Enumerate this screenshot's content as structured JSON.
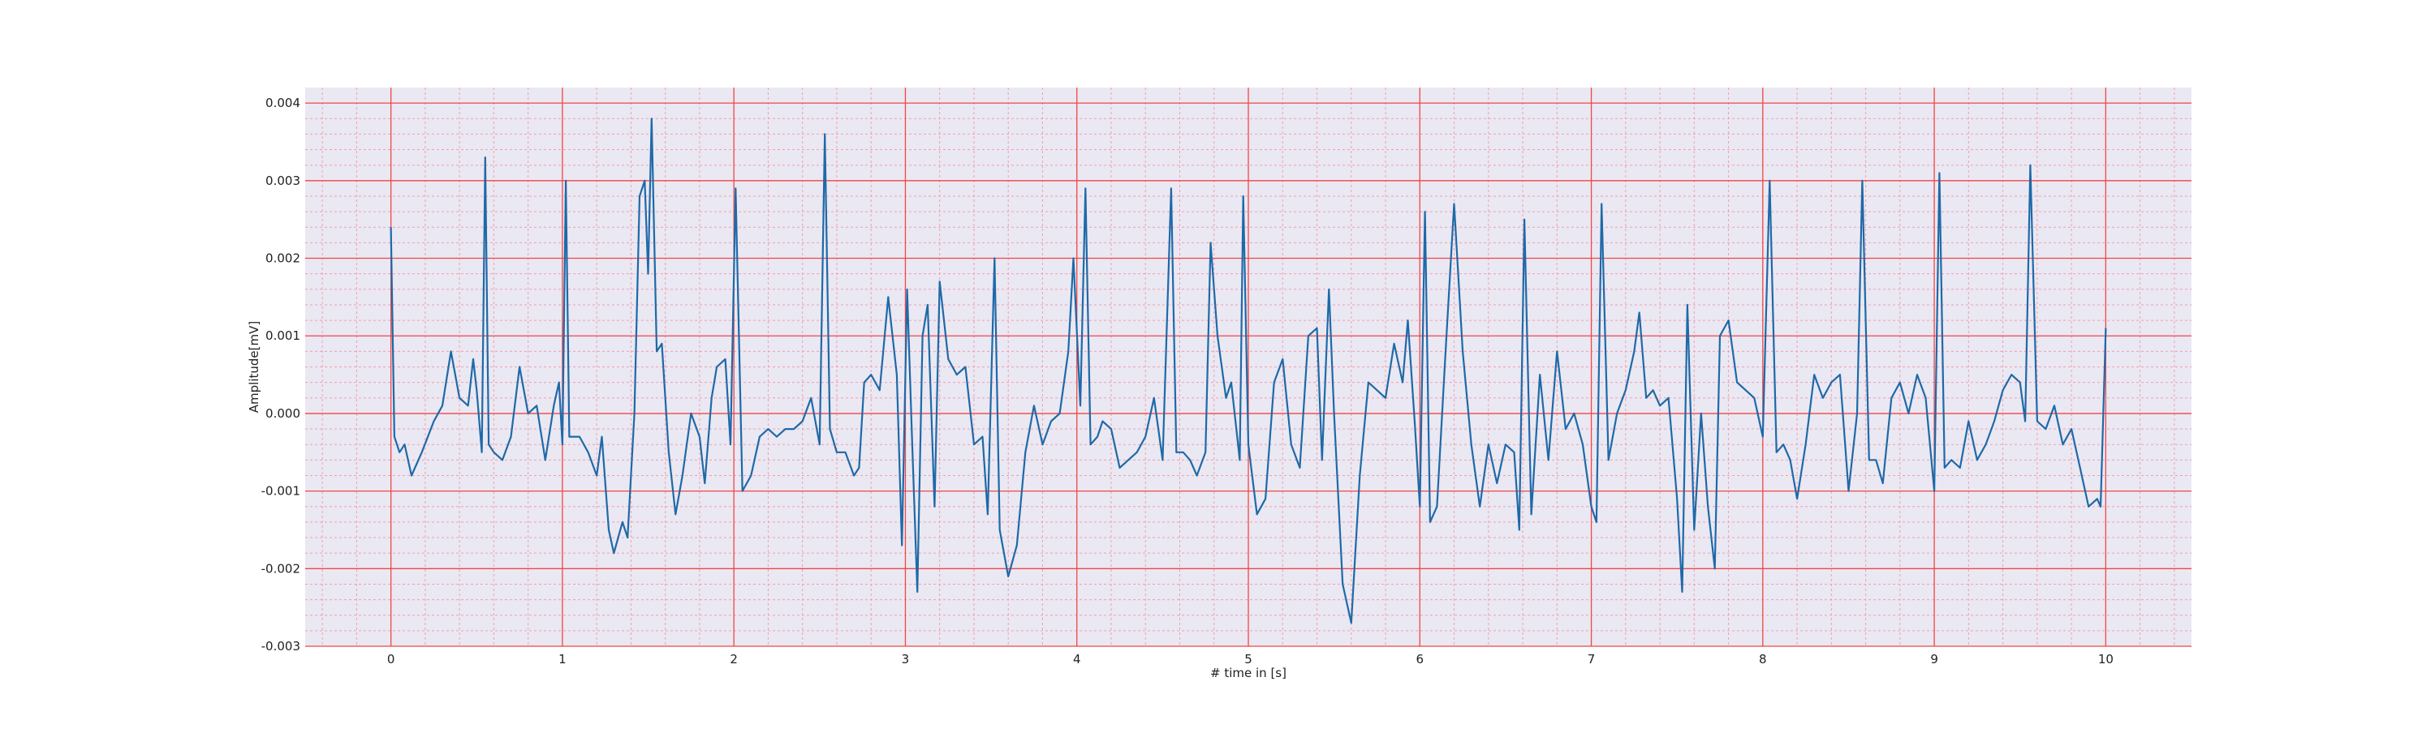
{
  "chart_data": {
    "type": "line",
    "title": "",
    "xlabel": "# time in [s]",
    "ylabel": "Amplitude[mV]",
    "xlim": [
      -0.5,
      10.5
    ],
    "ylim": [
      -0.003,
      0.0042
    ],
    "xticks": [
      0,
      1,
      2,
      3,
      4,
      5,
      6,
      7,
      8,
      9,
      10
    ],
    "xtick_labels": [
      "0",
      "1",
      "2",
      "3",
      "4",
      "5",
      "6",
      "7",
      "8",
      "9",
      "10"
    ],
    "yticks": [
      -0.003,
      -0.002,
      -0.001,
      0.0,
      0.001,
      0.002,
      0.003,
      0.004
    ],
    "ytick_labels": [
      "-0.003",
      "-0.002",
      "-0.001",
      "0.000",
      "0.001",
      "0.002",
      "0.003",
      "0.004"
    ],
    "grid": {
      "major": true,
      "minor": true
    },
    "colors": {
      "background": "#eae8f2",
      "major_grid": "#f04646",
      "minor_grid": "#f0a0b0",
      "line": "#1f69a8"
    },
    "series": [
      {
        "values": [
          [
            0.0,
            0.0024
          ],
          [
            0.02,
            -0.0003
          ],
          [
            0.05,
            -0.0005
          ],
          [
            0.08,
            -0.0004
          ],
          [
            0.12,
            -0.0008
          ],
          [
            0.18,
            -0.0005
          ],
          [
            0.25,
            -0.0001
          ],
          [
            0.3,
            0.0001
          ],
          [
            0.35,
            0.0008
          ],
          [
            0.4,
            0.0002
          ],
          [
            0.45,
            0.0001
          ],
          [
            0.48,
            0.0007
          ],
          [
            0.5,
            0.0003
          ],
          [
            0.53,
            -0.0005
          ],
          [
            0.55,
            0.0033
          ],
          [
            0.57,
            -0.0004
          ],
          [
            0.6,
            -0.0005
          ],
          [
            0.65,
            -0.0006
          ],
          [
            0.7,
            -0.0003
          ],
          [
            0.75,
            0.0006
          ],
          [
            0.8,
            0.0
          ],
          [
            0.85,
            0.0001
          ],
          [
            0.9,
            -0.0006
          ],
          [
            0.95,
            0.0001
          ],
          [
            0.98,
            0.0004
          ],
          [
            1.0,
            -0.0004
          ],
          [
            1.02,
            0.003
          ],
          [
            1.04,
            -0.0003
          ],
          [
            1.1,
            -0.0003
          ],
          [
            1.15,
            -0.0005
          ],
          [
            1.2,
            -0.0008
          ],
          [
            1.23,
            -0.0003
          ],
          [
            1.27,
            -0.0015
          ],
          [
            1.3,
            -0.0018
          ],
          [
            1.35,
            -0.0014
          ],
          [
            1.38,
            -0.0016
          ],
          [
            1.42,
            0.0
          ],
          [
            1.45,
            0.0028
          ],
          [
            1.48,
            0.003
          ],
          [
            1.5,
            0.0018
          ],
          [
            1.52,
            0.0038
          ],
          [
            1.55,
            0.0008
          ],
          [
            1.58,
            0.0009
          ],
          [
            1.62,
            -0.0005
          ],
          [
            1.66,
            -0.0013
          ],
          [
            1.7,
            -0.0008
          ],
          [
            1.75,
            0.0
          ],
          [
            1.8,
            -0.0003
          ],
          [
            1.83,
            -0.0009
          ],
          [
            1.87,
            0.0002
          ],
          [
            1.9,
            0.0006
          ],
          [
            1.95,
            0.0007
          ],
          [
            1.98,
            -0.0004
          ],
          [
            2.01,
            0.0029
          ],
          [
            2.05,
            -0.001
          ],
          [
            2.1,
            -0.0008
          ],
          [
            2.15,
            -0.0003
          ],
          [
            2.2,
            -0.0002
          ],
          [
            2.25,
            -0.0003
          ],
          [
            2.3,
            -0.0002
          ],
          [
            2.35,
            -0.0002
          ],
          [
            2.4,
            -0.0001
          ],
          [
            2.45,
            0.0002
          ],
          [
            2.5,
            -0.0004
          ],
          [
            2.53,
            0.0036
          ],
          [
            2.56,
            -0.0002
          ],
          [
            2.6,
            -0.0005
          ],
          [
            2.65,
            -0.0005
          ],
          [
            2.7,
            -0.0008
          ],
          [
            2.73,
            -0.0007
          ],
          [
            2.76,
            0.0004
          ],
          [
            2.8,
            0.0005
          ],
          [
            2.85,
            0.0003
          ],
          [
            2.9,
            0.0015
          ],
          [
            2.95,
            0.0005
          ],
          [
            2.98,
            -0.0017
          ],
          [
            3.01,
            0.0016
          ],
          [
            3.04,
            -0.0004
          ],
          [
            3.07,
            -0.0023
          ],
          [
            3.1,
            0.001
          ],
          [
            3.13,
            0.0014
          ],
          [
            3.17,
            -0.0012
          ],
          [
            3.2,
            0.0017
          ],
          [
            3.25,
            0.0007
          ],
          [
            3.3,
            0.0005
          ],
          [
            3.35,
            0.0006
          ],
          [
            3.4,
            -0.0004
          ],
          [
            3.45,
            -0.0003
          ],
          [
            3.48,
            -0.0013
          ],
          [
            3.52,
            0.002
          ],
          [
            3.55,
            -0.0015
          ],
          [
            3.6,
            -0.0021
          ],
          [
            3.65,
            -0.0017
          ],
          [
            3.7,
            -0.0005
          ],
          [
            3.75,
            0.0001
          ],
          [
            3.8,
            -0.0004
          ],
          [
            3.85,
            -0.0001
          ],
          [
            3.9,
            0.0
          ],
          [
            3.95,
            0.0008
          ],
          [
            3.98,
            0.002
          ],
          [
            4.02,
            0.0001
          ],
          [
            4.05,
            0.0029
          ],
          [
            4.08,
            -0.0004
          ],
          [
            4.12,
            -0.0003
          ],
          [
            4.15,
            -0.0001
          ],
          [
            4.2,
            -0.0002
          ],
          [
            4.25,
            -0.0007
          ],
          [
            4.3,
            -0.0006
          ],
          [
            4.35,
            -0.0005
          ],
          [
            4.4,
            -0.0003
          ],
          [
            4.45,
            0.0002
          ],
          [
            4.5,
            -0.0006
          ],
          [
            4.55,
            0.0029
          ],
          [
            4.58,
            -0.0005
          ],
          [
            4.62,
            -0.0005
          ],
          [
            4.66,
            -0.0006
          ],
          [
            4.7,
            -0.0008
          ],
          [
            4.75,
            -0.0005
          ],
          [
            4.78,
            0.0022
          ],
          [
            4.82,
            0.001
          ],
          [
            4.87,
            0.0002
          ],
          [
            4.9,
            0.0004
          ],
          [
            4.95,
            -0.0006
          ],
          [
            4.97,
            0.0028
          ],
          [
            5.0,
            -0.0004
          ],
          [
            5.05,
            -0.0013
          ],
          [
            5.1,
            -0.0011
          ],
          [
            5.15,
            0.0004
          ],
          [
            5.2,
            0.0007
          ],
          [
            5.25,
            -0.0004
          ],
          [
            5.3,
            -0.0007
          ],
          [
            5.35,
            0.001
          ],
          [
            5.4,
            0.0011
          ],
          [
            5.43,
            -0.0006
          ],
          [
            5.47,
            0.0016
          ],
          [
            5.5,
            0.0
          ],
          [
            5.55,
            -0.0022
          ],
          [
            5.6,
            -0.0027
          ],
          [
            5.65,
            -0.0008
          ],
          [
            5.7,
            0.0004
          ],
          [
            5.75,
            0.0003
          ],
          [
            5.8,
            0.0002
          ],
          [
            5.85,
            0.0009
          ],
          [
            5.9,
            0.0004
          ],
          [
            5.93,
            0.0012
          ],
          [
            5.97,
            -0.0001
          ],
          [
            6.0,
            -0.0012
          ],
          [
            6.03,
            0.0026
          ],
          [
            6.06,
            -0.0014
          ],
          [
            6.1,
            -0.0012
          ],
          [
            6.15,
            0.0008
          ],
          [
            6.2,
            0.0027
          ],
          [
            6.25,
            0.0008
          ],
          [
            6.3,
            -0.0004
          ],
          [
            6.35,
            -0.0012
          ],
          [
            6.4,
            -0.0004
          ],
          [
            6.45,
            -0.0009
          ],
          [
            6.5,
            -0.0004
          ],
          [
            6.55,
            -0.0005
          ],
          [
            6.58,
            -0.0015
          ],
          [
            6.61,
            0.0025
          ],
          [
            6.65,
            -0.0013
          ],
          [
            6.7,
            0.0005
          ],
          [
            6.75,
            -0.0006
          ],
          [
            6.8,
            0.0008
          ],
          [
            6.85,
            -0.0002
          ],
          [
            6.9,
            0.0
          ],
          [
            6.95,
            -0.0004
          ],
          [
            7.0,
            -0.0012
          ],
          [
            7.03,
            -0.0014
          ],
          [
            7.06,
            0.0027
          ],
          [
            7.1,
            -0.0006
          ],
          [
            7.15,
            0.0
          ],
          [
            7.2,
            0.0003
          ],
          [
            7.25,
            0.0008
          ],
          [
            7.28,
            0.0013
          ],
          [
            7.32,
            0.0002
          ],
          [
            7.36,
            0.0003
          ],
          [
            7.4,
            0.0001
          ],
          [
            7.45,
            0.0002
          ],
          [
            7.5,
            -0.0011
          ],
          [
            7.53,
            -0.0023
          ],
          [
            7.56,
            0.0014
          ],
          [
            7.6,
            -0.0015
          ],
          [
            7.64,
            0.0
          ],
          [
            7.68,
            -0.0012
          ],
          [
            7.72,
            -0.002
          ],
          [
            7.75,
            0.001
          ],
          [
            7.8,
            0.0012
          ],
          [
            7.85,
            0.0004
          ],
          [
            7.9,
            0.0003
          ],
          [
            7.95,
            0.0002
          ],
          [
            8.0,
            -0.0003
          ],
          [
            8.04,
            0.003
          ],
          [
            8.08,
            -0.0005
          ],
          [
            8.12,
            -0.0004
          ],
          [
            8.16,
            -0.0006
          ],
          [
            8.2,
            -0.0011
          ],
          [
            8.25,
            -0.0004
          ],
          [
            8.3,
            0.0005
          ],
          [
            8.35,
            0.0002
          ],
          [
            8.4,
            0.0004
          ],
          [
            8.45,
            0.0005
          ],
          [
            8.5,
            -0.001
          ],
          [
            8.55,
            0.0
          ],
          [
            8.58,
            0.003
          ],
          [
            8.62,
            -0.0006
          ],
          [
            8.66,
            -0.0006
          ],
          [
            8.7,
            -0.0009
          ],
          [
            8.75,
            0.0002
          ],
          [
            8.8,
            0.0004
          ],
          [
            8.85,
            0.0
          ],
          [
            8.9,
            0.0005
          ],
          [
            8.95,
            0.0002
          ],
          [
            9.0,
            -0.001
          ],
          [
            9.03,
            0.0031
          ],
          [
            9.06,
            -0.0007
          ],
          [
            9.1,
            -0.0006
          ],
          [
            9.15,
            -0.0007
          ],
          [
            9.2,
            -0.0001
          ],
          [
            9.25,
            -0.0006
          ],
          [
            9.3,
            -0.0004
          ],
          [
            9.35,
            -0.0001
          ],
          [
            9.4,
            0.0003
          ],
          [
            9.45,
            0.0005
          ],
          [
            9.5,
            0.0004
          ],
          [
            9.53,
            -0.0001
          ],
          [
            9.56,
            0.0032
          ],
          [
            9.6,
            -0.0001
          ],
          [
            9.65,
            -0.0002
          ],
          [
            9.7,
            0.0001
          ],
          [
            9.75,
            -0.0004
          ],
          [
            9.8,
            -0.0002
          ],
          [
            9.85,
            -0.0007
          ],
          [
            9.9,
            -0.0012
          ],
          [
            9.95,
            -0.0011
          ],
          [
            9.97,
            -0.0012
          ],
          [
            10.0,
            0.0011
          ]
        ]
      }
    ]
  }
}
